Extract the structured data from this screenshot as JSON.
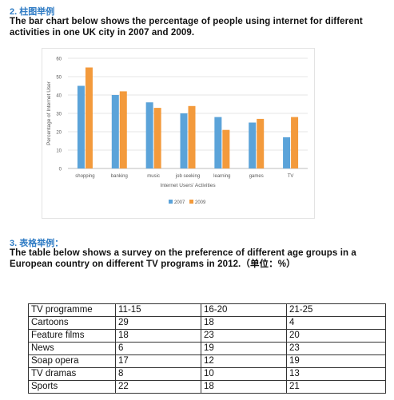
{
  "section2": {
    "heading": "2. 柱图举例",
    "description": "The bar chart below shows the percentage of people using internet for different activities in one UK city in 2007 and 2009."
  },
  "chart_data": {
    "type": "bar",
    "title": "",
    "xlabel": "Internet Users' Activities",
    "ylabel": "Percentage of Internet User",
    "ylim": [
      0,
      60
    ],
    "yticks": [
      0,
      10,
      20,
      30,
      40,
      50,
      60
    ],
    "categories": [
      "shopping",
      "banking",
      "music",
      "job seeking",
      "learning",
      "games",
      "TV"
    ],
    "series": [
      {
        "name": "2007",
        "color": "#5ba3d9",
        "values": [
          45,
          40,
          36,
          30,
          28,
          25,
          17
        ]
      },
      {
        "name": "2009",
        "color": "#f39a3c",
        "values": [
          55,
          42,
          33,
          34,
          21,
          27,
          28
        ]
      }
    ],
    "grid": true,
    "legend_position": "bottom"
  },
  "section3": {
    "heading": "3. 表格举例：",
    "description": "The table below shows a survey on the preference of different age groups in a European country on different TV programs in 2012.（单位：%）"
  },
  "table": {
    "headers": [
      "TV programme",
      "11-15",
      "16-20",
      "21-25"
    ],
    "rows": [
      [
        "Cartoons",
        "29",
        "18",
        "4"
      ],
      [
        "Feature films",
        "18",
        "23",
        "20"
      ],
      [
        "News",
        "6",
        "19",
        "23"
      ],
      [
        "Soap opera",
        "17",
        "12",
        "19"
      ],
      [
        "TV dramas",
        "8",
        "10",
        "13"
      ],
      [
        "Sports",
        "22",
        "18",
        "21"
      ]
    ]
  }
}
